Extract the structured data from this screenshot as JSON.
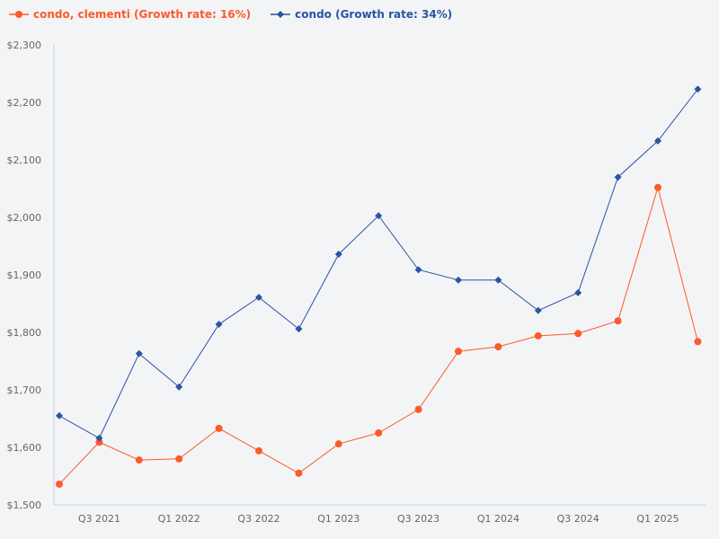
{
  "chart_data": {
    "type": "line",
    "title": "",
    "xlabel": "",
    "ylabel": "",
    "categories": [
      "Q2 2021",
      "Q3 2021",
      "Q4 2021",
      "Q1 2022",
      "Q2 2022",
      "Q3 2022",
      "Q4 2022",
      "Q1 2023",
      "Q2 2023",
      "Q3 2023",
      "Q4 2023",
      "Q1 2024",
      "Q2 2024",
      "Q3 2024",
      "Q4 2024",
      "Q1 2025",
      "Q2 2025"
    ],
    "xtick_labels": [
      "Q3 2021",
      "Q1 2022",
      "Q3 2022",
      "Q1 2023",
      "Q3 2023",
      "Q1 2024",
      "Q3 2024",
      "Q1 2025"
    ],
    "yticks": [
      "$1,500",
      "$1,600",
      "$1,700",
      "$1,800",
      "$1,900",
      "$2,000",
      "$2,100",
      "$2,200",
      "$2,300"
    ],
    "ylim": [
      1500,
      2300
    ],
    "grid": false,
    "legend_position": "top-left",
    "series": [
      {
        "name": "condo, clementi (Growth rate: 16%)",
        "color": "#fc5a2a",
        "marker": "circle",
        "values": [
          1536,
          1609,
          1578,
          1580,
          1633,
          1594,
          1555,
          1606,
          1625,
          1666,
          1767,
          1775,
          1794,
          1798,
          1820,
          2052,
          1784
        ]
      },
      {
        "name": "condo (Growth rate: 34%)",
        "color": "#2a54a4",
        "marker": "diamond",
        "values": [
          1655,
          1616,
          1763,
          1705,
          1814,
          1861,
          1806,
          1936,
          2003,
          1909,
          1891,
          1891,
          1838,
          1869,
          2070,
          2133,
          2223
        ]
      }
    ]
  }
}
